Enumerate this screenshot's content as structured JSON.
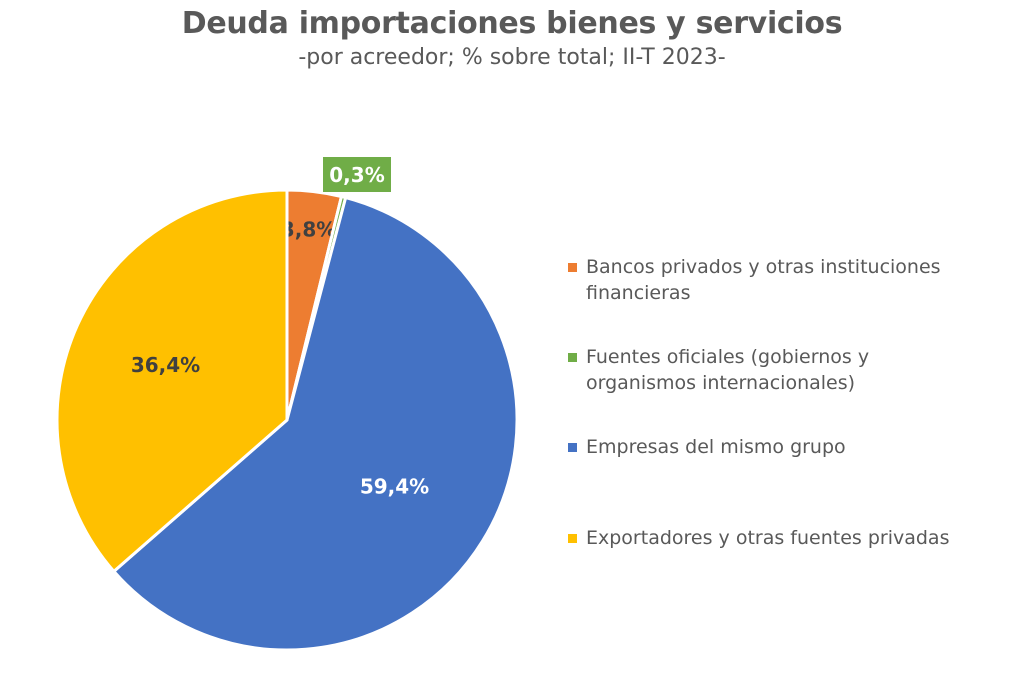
{
  "chart_data": {
    "type": "pie",
    "title": "Deuda importaciones bienes y servicios",
    "subtitle": "-por acreedor; % sobre total; II-T 2023-",
    "start_angle_deg": 0,
    "direction": "clockwise",
    "slices": [
      {
        "name": "Bancos privados y otras instituciones financieras",
        "value": 3.8,
        "label": "3,8%",
        "color": "#ED7D31",
        "label_color": "#404040"
      },
      {
        "name": "Fuentes oficiales (gobiernos y organismos internacionales)",
        "value": 0.3,
        "label": "0,3%",
        "color": "#70AD47",
        "label_color": "#ffffff",
        "label_boxed": true
      },
      {
        "name": "Empresas del mismo grupo",
        "value": 59.4,
        "label": "59,4%",
        "color": "#4472C4",
        "label_color": "#ffffff"
      },
      {
        "name": "Exportadores y otras fuentes privadas",
        "value": 36.4,
        "label": "36,4%",
        "color": "#FFC000",
        "label_color": "#404040"
      }
    ],
    "legend": {
      "position": "right",
      "entries": [
        {
          "label": "Bancos privados y otras instituciones financieras",
          "color": "#ED7D31"
        },
        {
          "label": "Fuentes oficiales (gobiernos y organismos internacionales)",
          "color": "#70AD47"
        },
        {
          "label": "Empresas del mismo grupo",
          "color": "#4472C4"
        },
        {
          "label": "Exportadores y otras fuentes privadas",
          "color": "#FFC000"
        }
      ]
    }
  }
}
